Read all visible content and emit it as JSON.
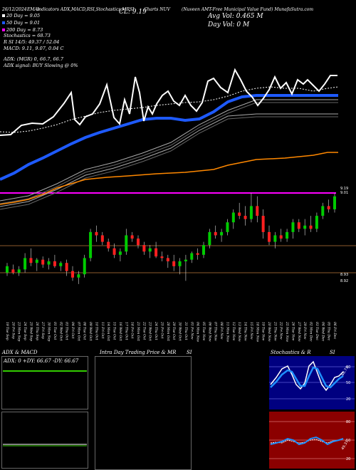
{
  "header": {
    "date_text": "26/12/2024",
    "ema_text": "EMAs",
    "indicators_text": "Indicators ADX,MACD,RSI,Stochastics,MRSI",
    "cl_text": "CL: 9.19",
    "ticker_text": "Charts NUV",
    "company_text": "(Nuveen AMT-Free Municipal Value Fund) MunafaSutra.com",
    "avg_vol_text": "Avg Vol: 0.465 M",
    "day_vol_text": "Day Vol: 0  M"
  },
  "legend": [
    {
      "color": "#ffffff",
      "text": "20 Day = 9.05"
    },
    {
      "color": "#1e5aff",
      "text": "50 Day = 9.01"
    },
    {
      "color": "#ff00ff",
      "text": "200 Day = 8.73"
    }
  ],
  "indicator_lines": [
    "Stochastics = 68.73",
    "R          SI 14/5: 49.37 / 52.04",
    "MACD: 9.11, 9.07, 0.04  C",
    "ADX:                          (MGR) 0, 66.7, 66.7",
    "ADX  signal:                            BUY Slowing @ 0%"
  ],
  "price_labels": {
    "top": "9.19",
    "mid": "9.01",
    "low1": "8.93",
    "low2": "8.92"
  },
  "panels": {
    "adx_title": "ADX  & MACD",
    "adx_values": "ADX: 0    +DY: 66.67  -DY: 66.67",
    "intraday_title": "Intra  Day Trading Price  & MR",
    "intraday_si": "SI",
    "stoch_title": "Stochastics & R",
    "stoch_si": "SI",
    "stoch_axis": [
      "80",
      "50",
      "20"
    ],
    "rsi_axis": [
      "80",
      "50",
      "20"
    ],
    "stoch_value": "68.73",
    "rsi_value": "49.37"
  },
  "colors": {
    "bull": "#00cc00",
    "bear": "#ff2020",
    "ema20": "#ffffff",
    "ema50": "#1e5aff",
    "ema200": "#ff00ff",
    "orange": "#ff8800",
    "bb": "#aaaaaa",
    "brown": "#8b5a2b"
  },
  "chart_data": {
    "type": "candlestick",
    "price_range": [
      8.9,
      9.22
    ],
    "dates": [
      "19 Tue Sep",
      "20 Fri Sep",
      "23 Mon Sep",
      "24 Tue Sep",
      "25 Wed Sep",
      "26 Thu Sep",
      "27 Fri Sep",
      "30 Mon Sep",
      "01 Tue Oct",
      "02 Wed Oct",
      "03 Thu Oct",
      "04 Fri Oct",
      "07 Mon Oct",
      "08 Tue Oct",
      "09 Wed Oct",
      "10 Thu Oct",
      "11 Fri Oct",
      "14 Mon Oct",
      "15 Tue Oct",
      "16 Wed Oct",
      "17 Thu Oct",
      "18 Fri Oct",
      "21 Mon Oct",
      "22 Tue Oct",
      "23 Wed Oct",
      "24 Thu Oct",
      "25 Fri Oct",
      "28 Mon Oct",
      "29 Tue Oct",
      "30 Wed Oct",
      "31 Thu Oct",
      "01 Fri Nov",
      "04 Mon Nov",
      "05 Tue Nov",
      "06 Wed Nov",
      "07 Thu Nov",
      "08 Fri Nov",
      "11 Mon Nov",
      "12 Tue Nov",
      "13 Wed Nov",
      "14 Thu Nov",
      "15 Fri Nov",
      "18 Mon Nov",
      "19 Tue Nov",
      "20 Wed Nov",
      "21 Thu Nov",
      "22 Fri Nov",
      "25 Mon Nov",
      "26 Tue Nov",
      "27 Wed Nov",
      "29 Fri Nov",
      "02 Mon Dec",
      "03 Tue Dec",
      "04 Wed Dec",
      "05 Thu Dec",
      "06 Fri Dec"
    ],
    "ohlc": [
      [
        8.955,
        8.985,
        8.945,
        8.975
      ],
      [
        8.965,
        8.98,
        8.95,
        8.955
      ],
      [
        8.955,
        8.975,
        8.945,
        8.965
      ],
      [
        8.965,
        9.015,
        8.955,
        9.0
      ],
      [
        9.0,
        9.03,
        8.975,
        8.985
      ],
      [
        8.985,
        9.0,
        8.96,
        8.995
      ],
      [
        8.995,
        9.005,
        8.97,
        8.98
      ],
      [
        8.98,
        9.0,
        8.965,
        8.99
      ],
      [
        8.99,
        9.01,
        8.97,
        8.975
      ],
      [
        8.975,
        8.99,
        8.96,
        8.985
      ],
      [
        8.985,
        8.995,
        8.945,
        8.96
      ],
      [
        8.96,
        8.975,
        8.93,
        8.94
      ],
      [
        8.94,
        8.96,
        8.92,
        8.95
      ],
      [
        8.95,
        9.01,
        8.94,
        9.0
      ],
      [
        9.0,
        9.09,
        8.99,
        9.08
      ],
      [
        9.08,
        9.1,
        9.05,
        9.07
      ],
      [
        9.07,
        9.08,
        9.04,
        9.05
      ],
      [
        9.05,
        9.06,
        9.02,
        9.03
      ],
      [
        9.03,
        9.045,
        9.0,
        9.01
      ],
      [
        9.01,
        9.03,
        8.99,
        9.02
      ],
      [
        9.02,
        9.09,
        9.01,
        9.07
      ],
      [
        9.07,
        9.08,
        9.05,
        9.06
      ],
      [
        9.06,
        9.07,
        9.03,
        9.04
      ],
      [
        9.04,
        9.05,
        9.01,
        9.02
      ],
      [
        9.02,
        9.04,
        9.0,
        9.03
      ],
      [
        9.03,
        9.05,
        9.0,
        9.005
      ],
      [
        9.005,
        9.02,
        8.99,
        9.0
      ],
      [
        9.0,
        9.01,
        8.97,
        8.99
      ],
      [
        8.99,
        9.01,
        8.96,
        8.975
      ],
      [
        8.975,
        9.0,
        8.95,
        8.99
      ],
      [
        8.99,
        9.01,
        8.93,
        8.995
      ],
      [
        8.995,
        9.02,
        8.985,
        9.015
      ],
      [
        9.015,
        9.03,
        8.995,
        9.01
      ],
      [
        9.01,
        9.05,
        9.0,
        9.04
      ],
      [
        9.04,
        9.09,
        9.03,
        9.08
      ],
      [
        9.08,
        9.1,
        9.06,
        9.07
      ],
      [
        9.07,
        9.09,
        9.05,
        9.08
      ],
      [
        9.08,
        9.12,
        9.07,
        9.11
      ],
      [
        9.11,
        9.15,
        9.09,
        9.14
      ],
      [
        9.14,
        9.17,
        9.12,
        9.13
      ],
      [
        9.13,
        9.16,
        9.1,
        9.12
      ],
      [
        9.12,
        9.2,
        9.11,
        9.16
      ],
      [
        9.16,
        9.19,
        9.11,
        9.13
      ],
      [
        9.13,
        9.15,
        9.06,
        9.08
      ],
      [
        9.08,
        9.1,
        9.04,
        9.05
      ],
      [
        9.05,
        9.08,
        9.03,
        9.07
      ],
      [
        9.07,
        9.09,
        9.05,
        9.06
      ],
      [
        9.06,
        9.09,
        9.05,
        9.08
      ],
      [
        9.08,
        9.12,
        9.06,
        9.11
      ],
      [
        9.11,
        9.12,
        9.08,
        9.09
      ],
      [
        9.09,
        9.12,
        9.07,
        9.1
      ],
      [
        9.1,
        9.13,
        9.08,
        9.09
      ],
      [
        9.09,
        9.14,
        9.08,
        9.13
      ],
      [
        9.13,
        9.17,
        9.12,
        9.16
      ],
      [
        9.16,
        9.18,
        9.14,
        9.15
      ],
      [
        9.15,
        9.2,
        9.14,
        9.19
      ]
    ]
  }
}
